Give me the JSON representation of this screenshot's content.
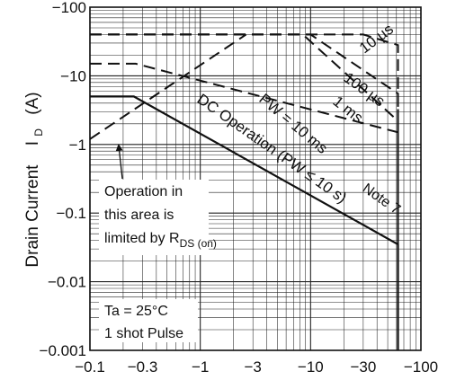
{
  "chart_data": {
    "type": "line",
    "xscale": "log",
    "yscale": "log",
    "xlim": [
      -0.1,
      -100
    ],
    "ylim": [
      -0.001,
      -100
    ],
    "x_tick_labels": [
      "−0.1",
      "−0.3",
      "−1",
      "−3",
      "−10",
      "−30",
      "−100"
    ],
    "x_ticks": [
      0.1,
      0.3,
      1,
      3,
      10,
      30,
      100
    ],
    "y_tick_labels": [
      "−100",
      "−10",
      "−1",
      "−0.1",
      "−0.01",
      "−0.001"
    ],
    "y_ticks": [
      100,
      10,
      1,
      0.1,
      0.01,
      0.001
    ],
    "ylabel": {
      "main": "Drain Current",
      "symbol": "I",
      "subscript": "D",
      "unit": "(A)"
    },
    "grid": true,
    "series": [
      {
        "name": "DC Operation (PW ≤ 10 s)",
        "style": "solid",
        "x": [
          -0.1,
          -0.25,
          -62,
          -62
        ],
        "y": [
          -5,
          -5,
          -0.035,
          -0.001
        ]
      },
      {
        "name": "PW = 10 ms",
        "style": "dashed",
        "x": [
          -0.1,
          -0.26,
          -0.26,
          -62,
          -62
        ],
        "y": [
          -15,
          -15,
          -15,
          -1.5,
          -0.001
        ]
      },
      {
        "name": "1 ms",
        "style": "dashed",
        "x": [
          -0.1,
          -8.5,
          -62,
          -62
        ],
        "y": [
          -40,
          -40,
          -2.2,
          -0.001
        ]
      },
      {
        "name": "100 µs",
        "style": "dashed",
        "x": [
          -0.1,
          -10,
          -62,
          -62
        ],
        "y": [
          -40,
          -40,
          -5.5,
          -0.001
        ]
      },
      {
        "name": "10 µs",
        "style": "dashed",
        "x": [
          -0.1,
          -30,
          -62,
          -62
        ],
        "y": [
          -40,
          -40,
          -28,
          -0.001
        ]
      },
      {
        "name": "R_DS(on) limit",
        "style": "dashed",
        "x": [
          -0.1,
          -2.6
        ],
        "y": [
          -1.2,
          -40
        ]
      }
    ],
    "labels": {
      "s10us": "10 µs",
      "s100us": "100 µs",
      "s1ms": "1 ms",
      "s10ms": "PW = 10 ms",
      "dc_main": "DC Operation (PW ≤ 10 s)",
      "note": "Note 7"
    },
    "annotations": {
      "op_line1": "Operation in",
      "op_line2": "this area is",
      "op_line3": "limited by R",
      "op_sub": "DS (on)",
      "cond1": "Ta = 25°C",
      "cond2": "1 shot Pulse"
    }
  }
}
